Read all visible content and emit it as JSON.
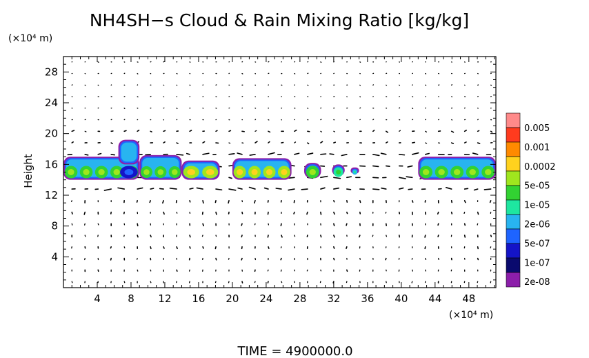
{
  "chart_data": {
    "type": "heatmap",
    "title": "NH4SH−s Cloud & Rain Mixing Ratio [kg/kg]",
    "ylabel": "Height",
    "y_unit": "(×10⁴ m)",
    "x_unit": "(×10⁴ m)",
    "footer": "TIME  =  4900000.0",
    "xlim": [
      0,
      51.2
    ],
    "ylim": [
      0,
      30
    ],
    "x_ticks": [
      4,
      8,
      12,
      16,
      20,
      24,
      28,
      32,
      36,
      40,
      44,
      48
    ],
    "x_tick_labels": [
      "4",
      "8",
      "12",
      "16",
      "20",
      "24",
      "28",
      "32",
      "36",
      "40",
      "44",
      "48"
    ],
    "y_ticks": [
      4,
      8,
      12,
      16,
      20,
      24,
      28
    ],
    "y_tick_labels": [
      "4",
      "8",
      "12",
      "16",
      "20",
      "24",
      "28"
    ],
    "colorbar": {
      "labels": [
        "0.005",
        "0.001",
        "0.0002",
        "5e-05",
        "1e-05",
        "2e-06",
        "5e-07",
        "1e-07",
        "2e-08"
      ],
      "colors": [
        "#ff8a8a",
        "#ff3b1e",
        "#ff8a00",
        "#ffd21e",
        "#a0e61e",
        "#32d232",
        "#1ee6a0",
        "#28b4f0",
        "#1e64ff",
        "#1414c8",
        "#0a0a6e",
        "#8c1eaa"
      ]
    },
    "cloud_blobs": [
      {
        "x0": 0.0,
        "x1": 9.0,
        "y0": 14.0,
        "y1": 17.0,
        "level": 5
      },
      {
        "x0": 6.5,
        "x1": 9.0,
        "y0": 16.0,
        "y1": 19.2,
        "level": 9
      },
      {
        "x0": 9.0,
        "x1": 14.0,
        "y0": 14.0,
        "y1": 17.2,
        "level": 5
      },
      {
        "x0": 14.0,
        "x1": 18.5,
        "y0": 14.0,
        "y1": 16.5,
        "level": 4
      },
      {
        "x0": 20.0,
        "x1": 27.0,
        "y0": 14.0,
        "y1": 16.8,
        "level": 4
      },
      {
        "x0": 28.5,
        "x1": 30.5,
        "y0": 14.2,
        "y1": 16.2,
        "level": 5
      },
      {
        "x0": 31.8,
        "x1": 33.3,
        "y0": 14.5,
        "y1": 16.0,
        "level": 6
      },
      {
        "x0": 34.0,
        "x1": 35.0,
        "y0": 14.8,
        "y1": 15.6,
        "level": 7
      },
      {
        "x0": 42.0,
        "x1": 51.2,
        "y0": 14.0,
        "y1": 17.0,
        "level": 5
      }
    ]
  }
}
